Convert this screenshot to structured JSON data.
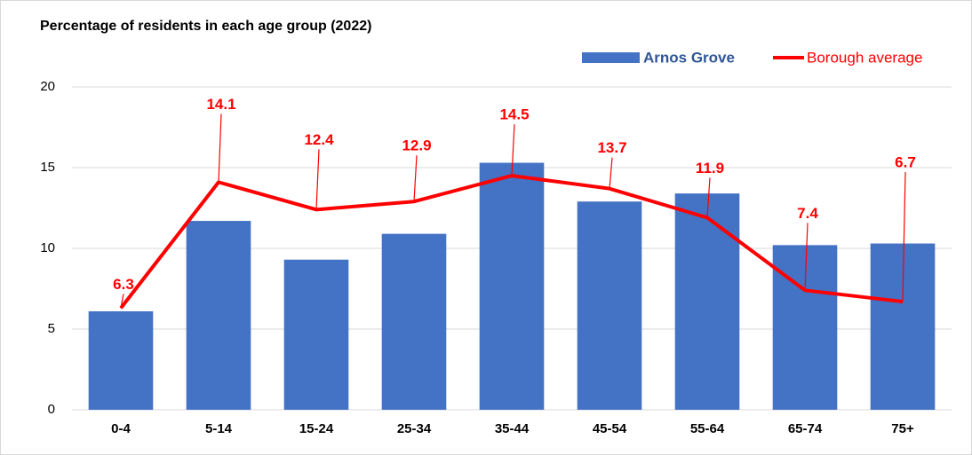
{
  "chart_data": {
    "type": "combo",
    "title": "Percentage of residents in each age group (2022)",
    "categories": [
      "0-4",
      "5-14",
      "15-24",
      "25-34",
      "35-44",
      "45-54",
      "55-64",
      "65-74",
      "75+"
    ],
    "series": [
      {
        "name": "Arnos Grove",
        "type": "bar",
        "color": "#4472c4",
        "values": [
          6.1,
          11.7,
          9.3,
          10.9,
          15.3,
          12.9,
          13.4,
          10.2,
          10.3
        ]
      },
      {
        "name": "Borough average",
        "type": "line",
        "color": "#ff0000",
        "values": [
          6.3,
          14.1,
          12.4,
          12.9,
          14.5,
          13.7,
          11.9,
          7.4,
          6.7
        ]
      }
    ],
    "ylim": [
      0,
      20
    ],
    "yticks": [
      0,
      5,
      10,
      15,
      20
    ],
    "grid": true,
    "legend": "top-right"
  }
}
